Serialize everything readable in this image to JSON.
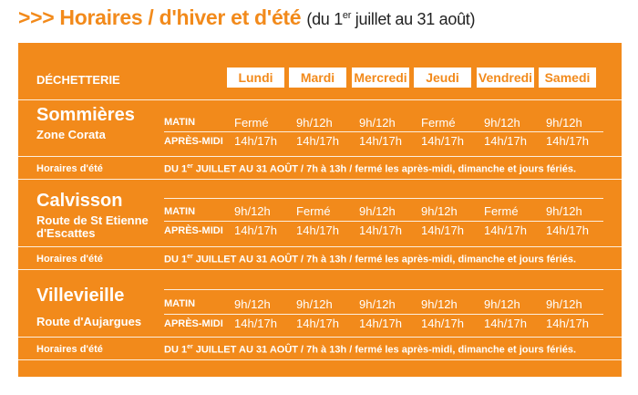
{
  "title": {
    "arrows": ">>>",
    "main": "Horaires / d'hiver et d'été",
    "sub_before": "(du 1",
    "sub_sup": "er",
    "sub_after": " juillet au 31 août)"
  },
  "table": {
    "header_label": "DÉCHETTERIE",
    "days": [
      "Lundi",
      "Mardi",
      "Mercredi",
      "Jeudi",
      "Vendredi",
      "Samedi"
    ],
    "morning_label": "MATIN",
    "afternoon_label": "APRÈS-MIDI",
    "summer_label": "Horaires d'été",
    "summer_text_before": "DU 1",
    "summer_text_sup": "er",
    "summer_text_after": " JUILLET AU 31 AOÛT / 7h à 13h / fermé les après-midi, dimanche et jours fériés.",
    "sites": [
      {
        "name": "Sommières",
        "address": "Zone Corata",
        "morning": [
          "Fermé",
          "9h/12h",
          "9h/12h",
          "Fermé",
          "9h/12h",
          "9h/12h"
        ],
        "afternoon": [
          "14h/17h",
          "14h/17h",
          "14h/17h",
          "14h/17h",
          "14h/17h",
          "14h/17h"
        ]
      },
      {
        "name": "Calvisson",
        "address": "Route de St Etienne d'Escattes",
        "morning": [
          "9h/12h",
          "Fermé",
          "9h/12h",
          "9h/12h",
          "Fermé",
          "9h/12h"
        ],
        "afternoon": [
          "14h/17h",
          "14h/17h",
          "14h/17h",
          "14h/17h",
          "14h/17h",
          "14h/17h"
        ]
      },
      {
        "name": "Villevieille",
        "address": "Route d'Aujargues",
        "morning": [
          "9h/12h",
          "9h/12h",
          "9h/12h",
          "9h/12h",
          "9h/12h",
          "9h/12h"
        ],
        "afternoon": [
          "14h/17h",
          "14h/17h",
          "14h/17h",
          "14h/17h",
          "14h/17h",
          "14h/17h"
        ]
      }
    ]
  },
  "colors": {
    "accent": "#f28a1b",
    "text_dark": "#222222",
    "white": "#ffffff"
  }
}
